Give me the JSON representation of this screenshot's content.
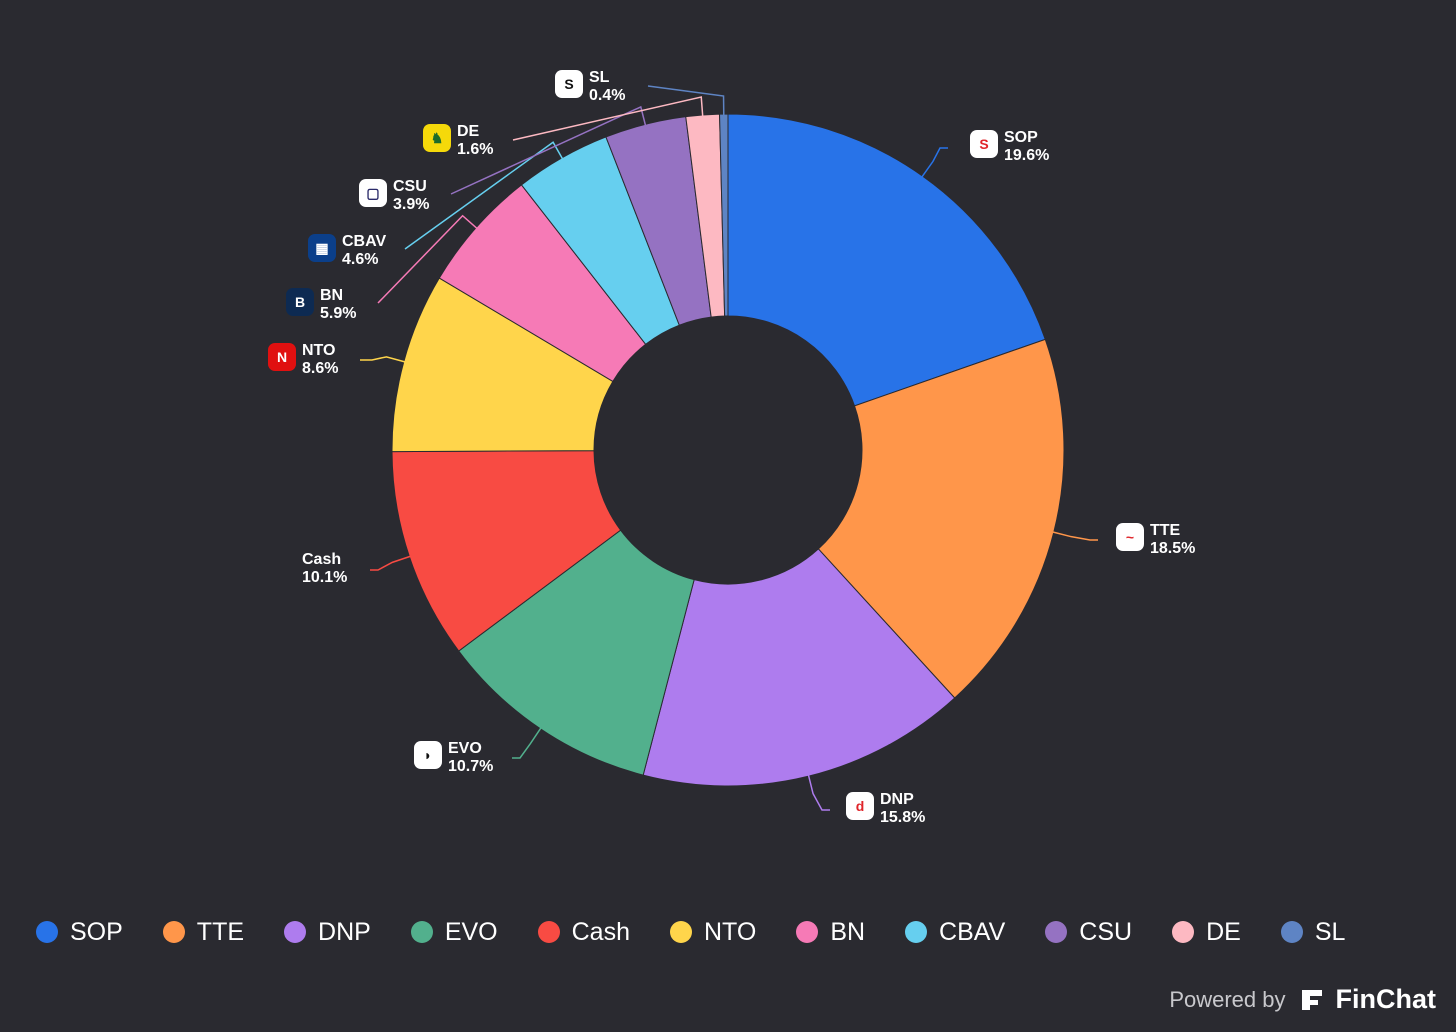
{
  "chart_data": {
    "type": "pie",
    "donut": true,
    "slices": [
      {
        "label": "SOP",
        "value": 19.6,
        "pct_text": "19.6%",
        "color": "#2873E8",
        "logo": "sop-logo",
        "show_logo": true
      },
      {
        "label": "TTE",
        "value": 18.5,
        "pct_text": "18.5%",
        "color": "#FF964A",
        "logo": "tte-logo",
        "show_logo": true
      },
      {
        "label": "DNP",
        "value": 15.8,
        "pct_text": "15.8%",
        "color": "#AE7CEE",
        "logo": "dnp-logo",
        "show_logo": true
      },
      {
        "label": "EVO",
        "value": 10.7,
        "pct_text": "10.7%",
        "color": "#52B08D",
        "logo": "evo-logo",
        "show_logo": true
      },
      {
        "label": "Cash",
        "value": 10.1,
        "pct_text": "10.1%",
        "color": "#F84B43",
        "logo": "",
        "show_logo": false
      },
      {
        "label": "NTO",
        "value": 8.6,
        "pct_text": "8.6%",
        "color": "#FFD54B",
        "logo": "nto-logo",
        "show_logo": true
      },
      {
        "label": "BN",
        "value": 5.9,
        "pct_text": "5.9%",
        "color": "#F67AB6",
        "logo": "bn-logo",
        "show_logo": true
      },
      {
        "label": "CBAV",
        "value": 4.6,
        "pct_text": "4.6%",
        "color": "#66CFEF",
        "logo": "cbav-logo",
        "show_logo": true
      },
      {
        "label": "CSU",
        "value": 3.9,
        "pct_text": "3.9%",
        "color": "#9572C2",
        "logo": "csu-logo",
        "show_logo": true
      },
      {
        "label": "DE",
        "value": 1.6,
        "pct_text": "1.6%",
        "color": "#FDB9C2",
        "logo": "de-logo",
        "show_logo": true
      },
      {
        "label": "SL",
        "value": 0.4,
        "pct_text": "0.4%",
        "color": "#5E84C4",
        "logo": "sl-logo",
        "show_logo": true
      }
    ],
    "legend_position": "bottom-left"
  },
  "legend": {
    "items": [
      "SOP",
      "TTE",
      "DNP",
      "EVO",
      "Cash",
      "NTO",
      "BN",
      "CBAV",
      "CSU",
      "DE",
      "SL"
    ]
  },
  "footer": {
    "powered_by": "Powered by",
    "brand": "FinChat",
    "brand_icon": "finchat-logo-icon"
  }
}
